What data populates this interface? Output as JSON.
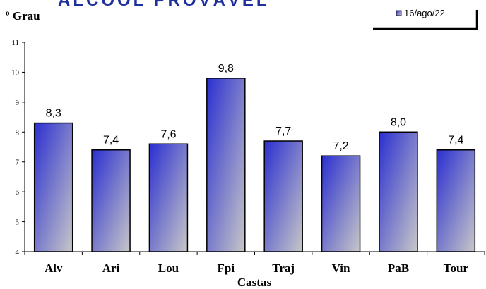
{
  "chart_data": {
    "type": "bar",
    "title": "ÁLCOOL PROVÁVEL",
    "ylabel": "º Grau",
    "xlabel": "Castas",
    "categories": [
      "Alv",
      "Ari",
      "Lou",
      "Fpi",
      "Traj",
      "Vin",
      "PaB",
      "Tour"
    ],
    "series": [
      {
        "name": "16/ago/22",
        "values": [
          8.3,
          7.4,
          7.6,
          9.8,
          7.7,
          7.2,
          8.0,
          7.4
        ],
        "labels": [
          "8,3",
          "7,4",
          "7,6",
          "9,8",
          "7,7",
          "7,2",
          "8,0",
          "7,4"
        ]
      }
    ],
    "ylim": [
      4,
      11
    ],
    "yticks": [
      "4",
      "5",
      "6",
      "7",
      "8",
      "9",
      "10",
      "11"
    ],
    "grid": false,
    "legend_position": "top-right",
    "colors": {
      "bar_start": "#2b2fd0",
      "bar_end": "#c7c7c7",
      "title": "#1f2f9e"
    }
  }
}
